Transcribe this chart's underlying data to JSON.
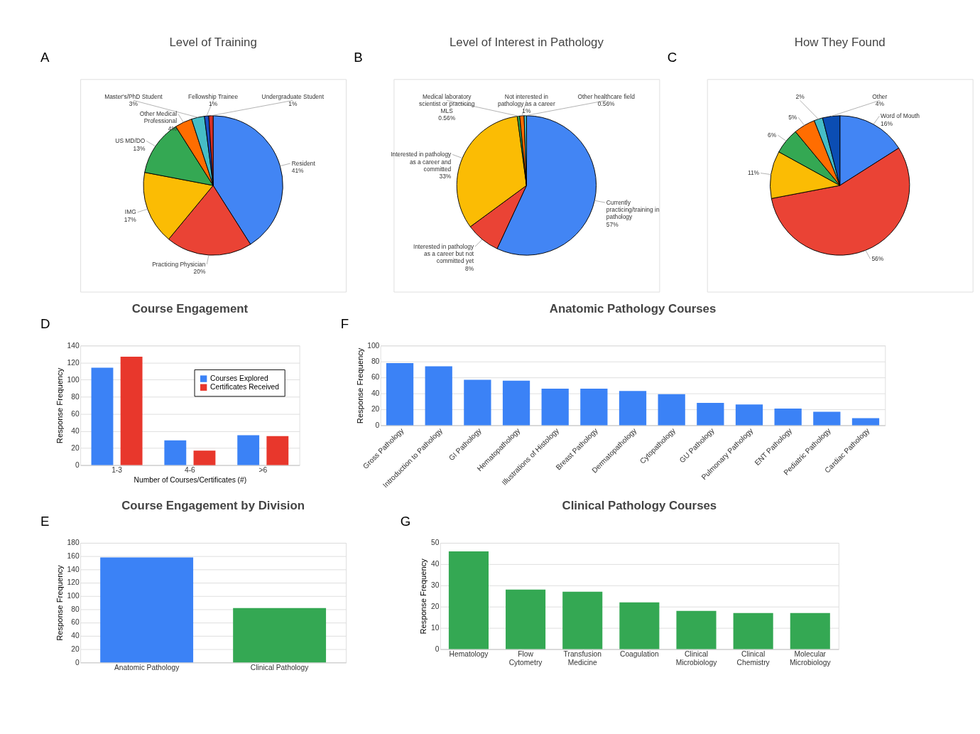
{
  "chart_data": [
    {
      "type": "pie",
      "title": "Level of Training",
      "annotations": [
        "A"
      ],
      "categories": [
        "Resident",
        "Practicing Physician",
        "IMG",
        "US MD/DO",
        "Other Medical Professional",
        "Master's/PhD Student",
        "Fellowship Trainee",
        "Undergraduate Student"
      ],
      "values": [
        41,
        20,
        17,
        13,
        4,
        3,
        1,
        1
      ],
      "value_labels": [
        "41%",
        "20%",
        "17%",
        "13%",
        "4%",
        "3%",
        "1%",
        "1%"
      ],
      "colors": [
        "#4285f4",
        "#ea4335",
        "#fbbc04",
        "#34a853",
        "#ff6d01",
        "#46bdc6",
        "#1a4fc4",
        "#d93025"
      ]
    },
    {
      "type": "pie",
      "title": "Level of Interest in Pathology",
      "annotations": [
        "B"
      ],
      "categories": [
        "Currently practicing/training in pathology",
        "Interested in pathology as a career but not committed yet",
        "Interested in pathology as a career and committed",
        "Medical laboratory scientist or practicing MLS",
        "Not interested in pathology as a career",
        "Other healthcare field"
      ],
      "values": [
        57,
        8,
        33,
        0.56,
        1,
        0.56
      ],
      "value_labels": [
        "57%",
        "8%",
        "33%",
        "0.56%",
        "1%",
        "0.56%"
      ],
      "colors": [
        "#4285f4",
        "#ea4335",
        "#fbbc04",
        "#34a853",
        "#ff6d01",
        "#46bdc6"
      ]
    },
    {
      "type": "pie",
      "title": "How They Found",
      "annotations": [
        "C"
      ],
      "categories": [
        "Word of Mouth",
        null,
        null,
        null,
        null,
        null,
        "Other"
      ],
      "values": [
        16,
        56,
        11,
        6,
        5,
        2,
        4
      ],
      "value_labels": [
        "16%",
        "56%",
        "11%",
        "6%",
        "5%",
        "2%",
        "4%"
      ],
      "colors": [
        "#4285f4",
        "#ea4335",
        "#fbbc04",
        "#34a853",
        "#ff6d01",
        "#46bdc6",
        "#0b4db3"
      ]
    },
    {
      "type": "bar",
      "title": "Course Engagement",
      "annotations": [
        "D"
      ],
      "categories": [
        "1-3",
        "4-6",
        ">6"
      ],
      "series": [
        {
          "name": "Courses Explored",
          "color": "#3b82f6",
          "values": [
            114,
            29,
            35
          ]
        },
        {
          "name": "Certificates Received",
          "color": "#e8372c",
          "values": [
            127,
            17,
            34
          ]
        }
      ],
      "xlabel": "Number of Courses/Certificates (#)",
      "ylabel": "Response Frequency",
      "ylim": [
        0,
        140
      ],
      "yticks": [
        0,
        20,
        40,
        60,
        80,
        100,
        120,
        140
      ],
      "grid": "y",
      "legend": "top right"
    },
    {
      "type": "bar",
      "title": "Anatomic Pathology Courses",
      "annotations": [
        "F"
      ],
      "categories": [
        "Gross Pathology",
        "Introduction to Pathology",
        "GI Pathology",
        "Hematopathology",
        "Illustrations of Histology",
        "Breast Pathology",
        "Dermatopathology",
        "Cytopathology",
        "GU Pathology",
        "Pulmonary Pathology",
        "ENT Pathology",
        "Pediatric Pathology",
        "Cardiac Pathology"
      ],
      "values": [
        78,
        74,
        57,
        56,
        46,
        46,
        43,
        39,
        28,
        26,
        21,
        17,
        9
      ],
      "color": "#3b82f6",
      "ylabel": "Response Frequency",
      "ylim": [
        0,
        100
      ],
      "yticks": [
        0,
        20,
        40,
        60,
        80,
        100
      ],
      "grid": "y"
    },
    {
      "type": "bar",
      "title": "Course Engagement by Division",
      "annotations": [
        "E"
      ],
      "categories": [
        "Anatomic Pathology",
        "Clinical Pathology"
      ],
      "values": [
        158,
        82
      ],
      "colors": [
        "#3b82f6",
        "#34a853"
      ],
      "ylabel": "Response Frequency",
      "ylim": [
        0,
        180
      ],
      "yticks": [
        0,
        20,
        40,
        60,
        80,
        100,
        120,
        140,
        160,
        180
      ],
      "grid": "y"
    },
    {
      "type": "bar",
      "title": "Clinical Pathology Courses",
      "annotations": [
        "G"
      ],
      "categories": [
        "Hematology",
        "Flow Cytometry",
        "Transfusion Medicine",
        "Coagulation",
        "Clinical Microbiology",
        "Clinical Chemistry",
        "Molecular Microbiology"
      ],
      "values": [
        46,
        28,
        27,
        22,
        18,
        17,
        17
      ],
      "color": "#34a853",
      "ylabel": "Response Frequency",
      "ylim": [
        0,
        50
      ],
      "yticks": [
        0,
        10,
        20,
        30,
        40,
        50
      ],
      "grid": "y"
    }
  ]
}
